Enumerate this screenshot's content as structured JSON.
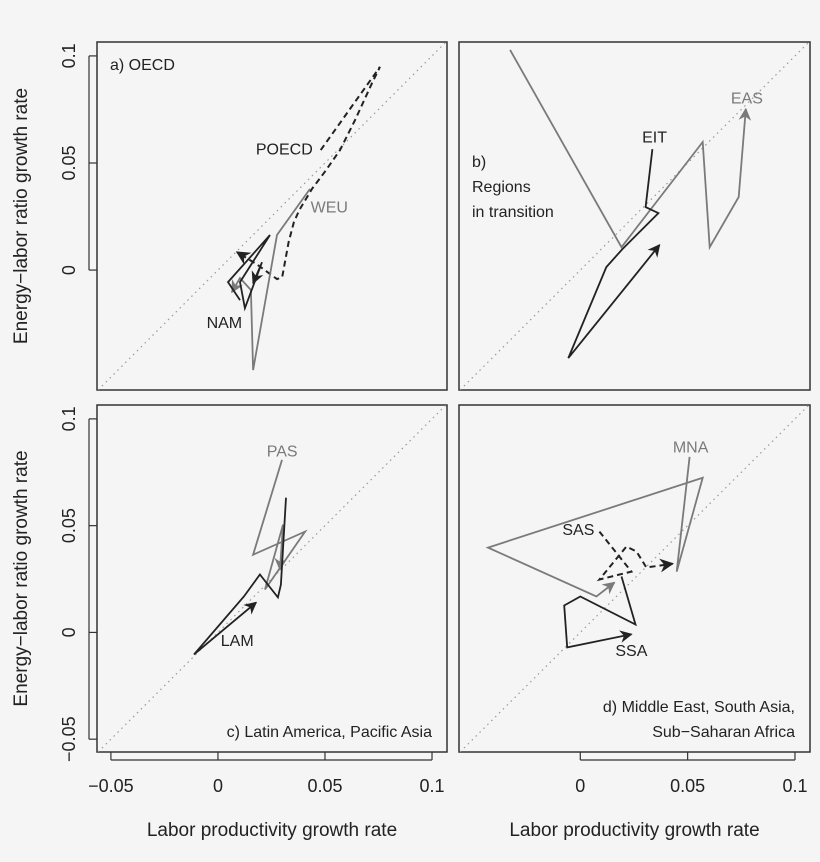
{
  "chart_data": [
    {
      "type": "line",
      "panel_text": [
        "a) OECD"
      ],
      "panel_text_position": "top-left",
      "xlabel": "",
      "ylabel": "Energy−labor ratio growth rate",
      "xlim": [
        -0.0565,
        0.107
      ],
      "ylim": [
        -0.056,
        0.1065
      ],
      "xticks": [],
      "xtick_labels": [],
      "yticks": [
        0,
        0.05,
        0.1
      ],
      "ytick_labels": [
        "0",
        "0.05",
        "0.1"
      ],
      "reference_line": "y = x (dotted)",
      "series": [
        {
          "name": "POECD",
          "color": "#222222",
          "dashed": true,
          "label_at": [
            0.031,
            0.056
          ],
          "x": [
            0.048,
            0.0757,
            0.072,
            0.064,
            0.057,
            0.05,
            0.044,
            0.038,
            0.0355,
            0.033,
            0.03,
            0.0276,
            0.018,
            0.0089
          ],
          "y": [
            0.056,
            0.0949,
            0.0874,
            0.07,
            0.056,
            0.046,
            0.038,
            0.028,
            0.0224,
            0.013,
            -0.0033,
            -0.0042,
            0.0028,
            0.0084
          ]
        },
        {
          "name": "WEU",
          "color": "#7a7a7a",
          "dashed": false,
          "label_at": [
            0.052,
            0.029
          ],
          "x": [
            0.043,
            0.0276,
            0.0164,
            0.0154,
            0.0103,
            0.0065
          ],
          "y": [
            0.0379,
            0.0164,
            -0.0467,
            -0.0093,
            -0.0037,
            -0.0103
          ]
        },
        {
          "name": "NAM",
          "color": "#222222",
          "dashed": false,
          "label_at": [
            0.003,
            -0.025
          ],
          "x": [
            0.0103,
            0.0047,
            0.0243,
            0.0103,
            0.0126,
            0.0206,
            0.0164
          ],
          "y": [
            -0.014,
            -0.0056,
            0.0164,
            -0.0056,
            -0.0178,
            0.0037,
            -0.0061
          ]
        }
      ]
    },
    {
      "type": "line",
      "panel_text": [
        "b)",
        "Regions",
        "in transition"
      ],
      "panel_text_position": "left",
      "xlabel": "",
      "ylabel": "",
      "xlim": [
        -0.0565,
        0.107
      ],
      "ylim": [
        -0.056,
        0.1065
      ],
      "xticks": [],
      "xtick_labels": [],
      "yticks": [],
      "ytick_labels": [],
      "reference_line": "y = x (dotted)",
      "series": [
        {
          "name": "EAS",
          "color": "#7a7a7a",
          "dashed": false,
          "label_at": [
            0.0776,
            0.08
          ],
          "x": [
            -0.0327,
            0.0192,
            0.057,
            0.0603,
            0.0738,
            0.0771
          ],
          "y": [
            0.1028,
            0.0107,
            0.0598,
            0.0107,
            0.0341,
            0.0752
          ]
        },
        {
          "name": "EIT",
          "color": "#222222",
          "dashed": false,
          "label_at": [
            0.0346,
            0.0617
          ],
          "x": [
            0.0336,
            0.0304,
            0.0364,
            0.0196,
            0.0121,
            -0.0056,
            0.0369
          ],
          "y": [
            0.0565,
            0.0294,
            0.0266,
            0.0098,
            0.0014,
            -0.0411,
            0.0117
          ]
        }
      ]
    },
    {
      "type": "line",
      "panel_text": [
        "c) Latin America, Pacific Asia"
      ],
      "panel_text_position": "bottom-right",
      "xlabel": "Labor productivity growth rate",
      "ylabel": "Energy−labor ratio growth rate",
      "xlim": [
        -0.0565,
        0.107
      ],
      "ylim": [
        -0.056,
        0.1065
      ],
      "xticks": [
        -0.05,
        0,
        0.05,
        0.1
      ],
      "xtick_labels": [
        "−0.05",
        "0",
        "0.05",
        "0.1"
      ],
      "yticks": [
        -0.05,
        0,
        0.05,
        0.1
      ],
      "ytick_labels": [
        "−0.05",
        "0",
        "0.05",
        "0.1"
      ],
      "reference_line": "y = x (dotted)",
      "series": [
        {
          "name": "PAS",
          "color": "#7a7a7a",
          "dashed": false,
          "label_at": [
            0.03,
            0.0846
          ],
          "x": [
            0.0299,
            0.0164,
            0.0407,
            0.022,
            0.0304,
            0.029
          ],
          "y": [
            0.0808,
            0.0364,
            0.0472,
            0.0201,
            0.0505,
            0.0294
          ]
        },
        {
          "name": "LAM",
          "color": "#222222",
          "dashed": false,
          "label_at": [
            0.009,
            -0.0042
          ],
          "x": [
            0.0318,
            0.0294,
            0.028,
            0.0196,
            0.0121,
            -0.0112,
            0.0178
          ],
          "y": [
            0.0631,
            0.0224,
            0.0164,
            0.0271,
            0.0168,
            -0.0103,
            0.014
          ]
        }
      ]
    },
    {
      "type": "line",
      "panel_text": [
        "d) Middle East, South Asia,",
        "Sub−Saharan Africa"
      ],
      "panel_text_position": "bottom-right",
      "xlabel": "Labor productivity growth rate",
      "ylabel": "",
      "xlim": [
        -0.0565,
        0.107
      ],
      "ylim": [
        -0.056,
        0.1065
      ],
      "xticks": [
        0,
        0.05,
        0.1
      ],
      "xtick_labels": [
        "0",
        "0.05",
        "0.1"
      ],
      "yticks": [],
      "ytick_labels": [],
      "reference_line": "y = x (dotted)",
      "series": [
        {
          "name": "MNA",
          "color": "#7a7a7a",
          "dashed": false,
          "label_at": [
            0.0514,
            0.0864
          ],
          "x": [
            0.0509,
            0.0449,
            0.057,
            -0.043,
            0.0075,
            0.0159
          ],
          "y": [
            0.0822,
            0.0285,
            0.0724,
            0.0397,
            0.0168,
            0.0234
          ]
        },
        {
          "name": "SAS",
          "color": "#222222",
          "dashed": true,
          "label_at": [
            -0.0009,
            0.0477
          ],
          "x": [
            0.0089,
            0.0238,
            0.0089,
            0.0215,
            0.0262,
            0.0308,
            0.043
          ],
          "y": [
            0.0472,
            0.0285,
            0.0248,
            0.0402,
            0.0379,
            0.0304,
            0.0322
          ]
        },
        {
          "name": "SSA",
          "color": "#222222",
          "dashed": false,
          "label_at": [
            0.0238,
            -0.0089
          ],
          "x": [
            0.0192,
            0.0257,
            0,
            -0.0075,
            -0.0061,
            0.0238
          ],
          "y": [
            0.0262,
            0.0037,
            0.0168,
            0.0126,
            -0.007,
            -0.0009
          ]
        }
      ]
    }
  ]
}
